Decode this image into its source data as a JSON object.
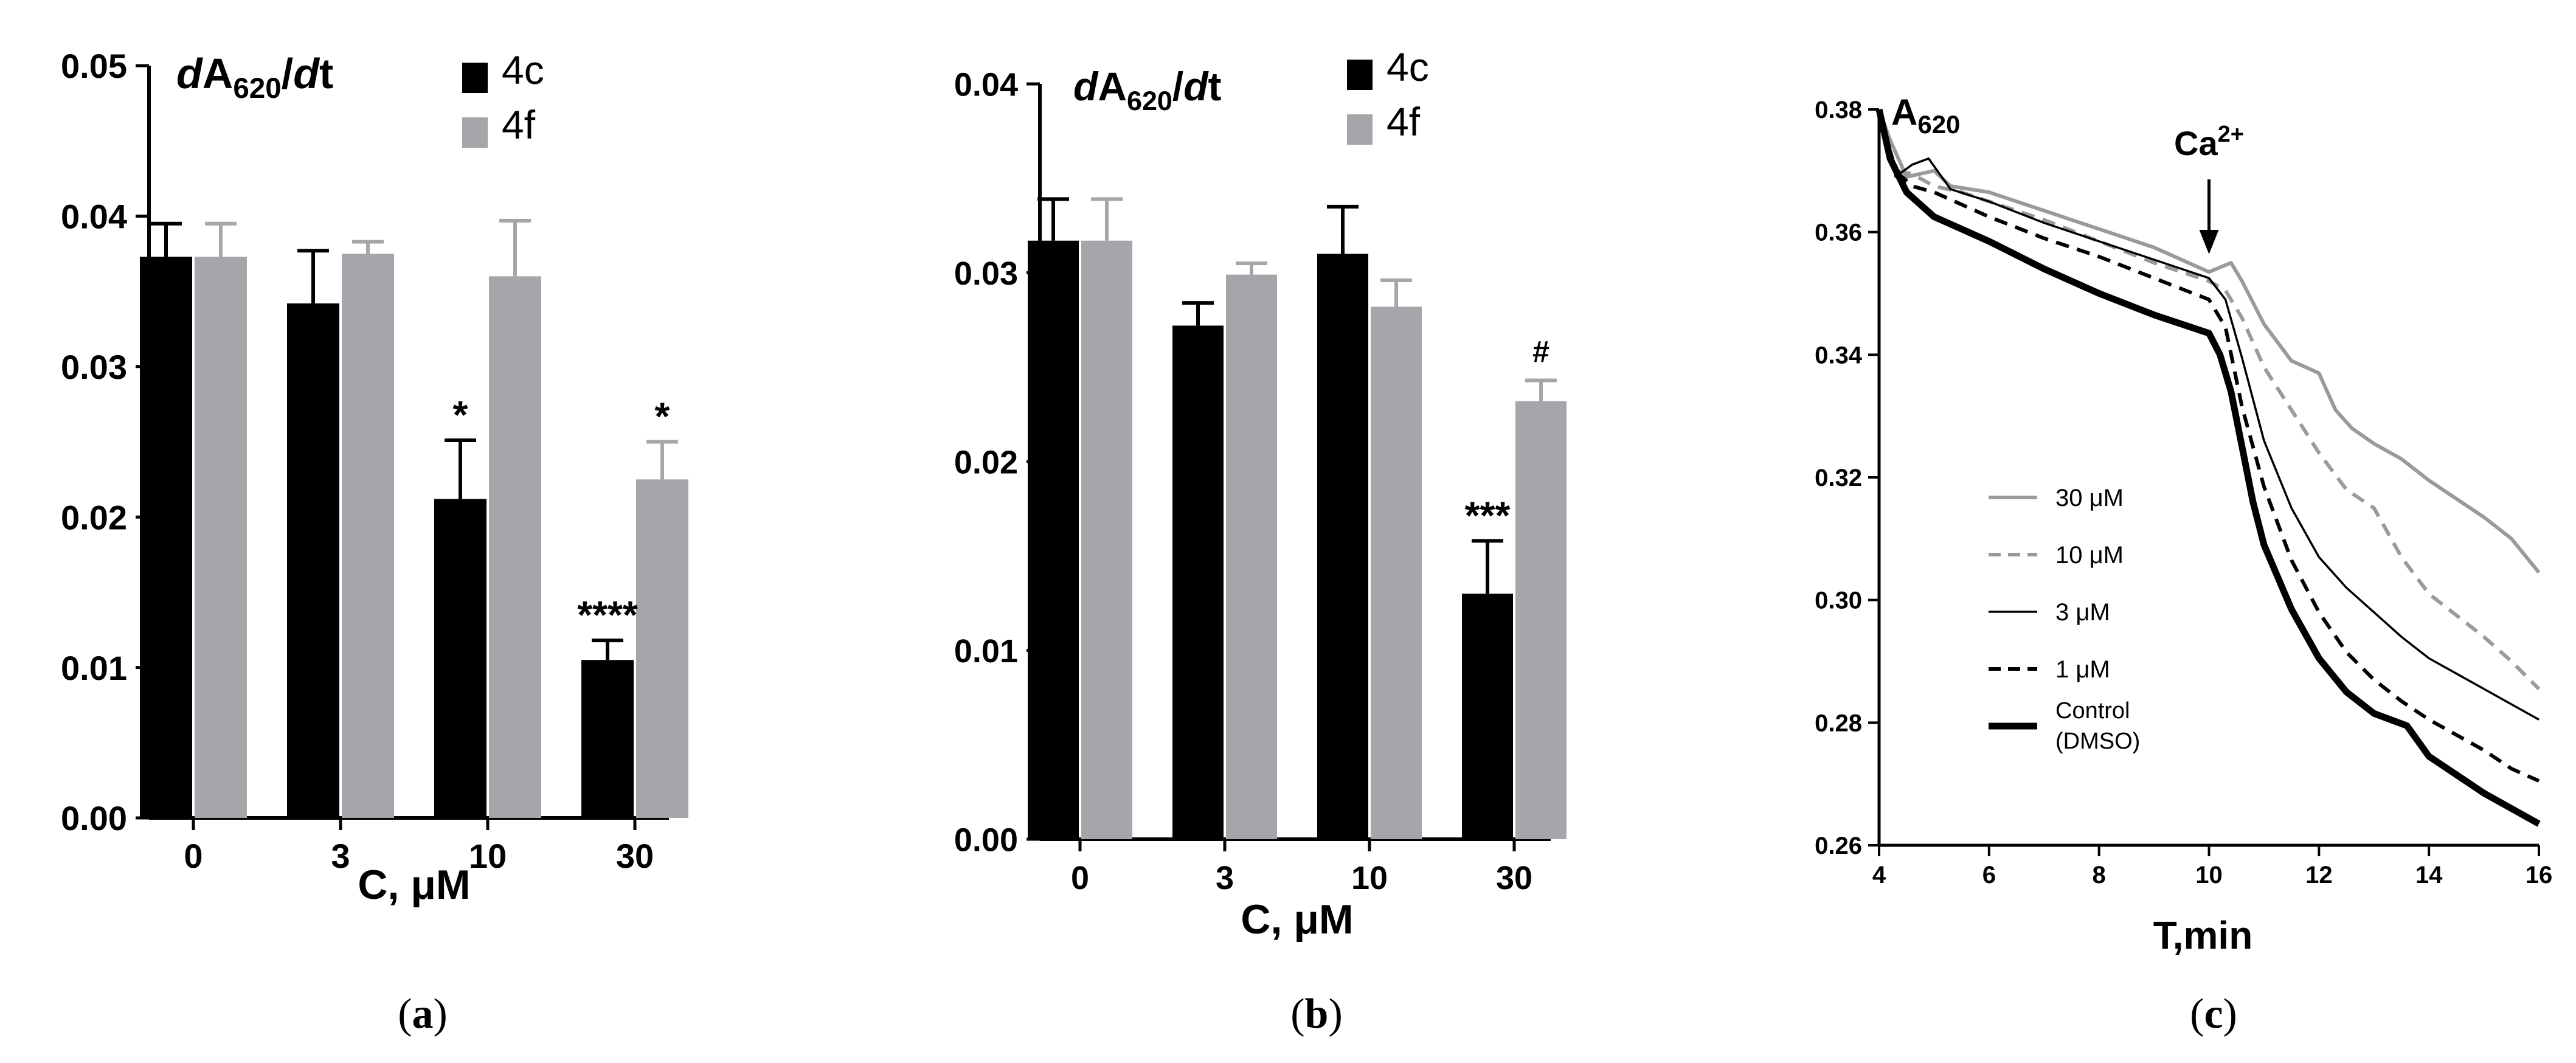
{
  "chart_data": [
    {
      "type": "bar",
      "panel_label": "a",
      "title_italic_prefix": "d",
      "title_main": "A",
      "title_sub": "620",
      "title_slash": "/",
      "title_italic_suffix": "d",
      "title_end": "t",
      "categories": [
        "0",
        "3",
        "10",
        "30"
      ],
      "xlabel": "C, μM",
      "ylabel": "",
      "ylim": [
        0,
        0.05
      ],
      "yticks": [
        "0.00",
        "0.01",
        "0.02",
        "0.03",
        "0.04",
        "0.05"
      ],
      "series": [
        {
          "name": "4c",
          "color": "#000000",
          "values": [
            0.0373,
            0.0342,
            0.0212,
            0.0105
          ],
          "errors": [
            0.0022,
            0.0035,
            0.0039,
            0.0013
          ]
        },
        {
          "name": "4f",
          "color": "#a6a6aa",
          "values": [
            0.0373,
            0.0375,
            0.036,
            0.0225
          ],
          "errors": [
            0.0022,
            0.0008,
            0.0037,
            0.0025
          ]
        }
      ],
      "annotations": [
        {
          "series": 0,
          "category": 2,
          "text": "*"
        },
        {
          "series": 0,
          "category": 3,
          "text": "****"
        },
        {
          "series": 1,
          "category": 3,
          "text": "*"
        }
      ]
    },
    {
      "type": "bar",
      "panel_label": "b",
      "title_italic_prefix": "d",
      "title_main": "A",
      "title_sub": "620",
      "title_slash": "/",
      "title_italic_suffix": "d",
      "title_end": "t",
      "categories": [
        "0",
        "3",
        "10",
        "30"
      ],
      "xlabel": "C, μM",
      "ylabel": "",
      "ylim": [
        0,
        0.04
      ],
      "yticks": [
        "0.00",
        "0.01",
        "0.02",
        "0.03",
        "0.04"
      ],
      "series": [
        {
          "name": "4c",
          "color": "#000000",
          "values": [
            0.0317,
            0.0272,
            0.031,
            0.013
          ],
          "errors": [
            0.0022,
            0.0012,
            0.0025,
            0.0028
          ]
        },
        {
          "name": "4f",
          "color": "#a6a6aa",
          "values": [
            0.0317,
            0.0299,
            0.0282,
            0.0232
          ],
          "errors": [
            0.0022,
            0.0006,
            0.0014,
            0.0011
          ]
        }
      ],
      "annotations": [
        {
          "series": 0,
          "category": 3,
          "text": "***"
        },
        {
          "series": 1,
          "category": 3,
          "text": "#"
        }
      ]
    },
    {
      "type": "line",
      "panel_label": "c",
      "ylabel_main": "A",
      "ylabel_sub": "620",
      "xlabel": "T,min",
      "xlim": [
        4,
        16
      ],
      "ylim": [
        0.26,
        0.38
      ],
      "xticks": [
        "4",
        "6",
        "8",
        "10",
        "12",
        "14",
        "16"
      ],
      "yticks": [
        "0.26",
        "0.28",
        "0.30",
        "0.32",
        "0.34",
        "0.36",
        "0.38"
      ],
      "annotation": {
        "text": "Ca",
        "sup": "2+",
        "x": 10
      },
      "series": [
        {
          "name": "30 μM",
          "color": "#9a9a9a",
          "dash": "solid",
          "weight": "medium",
          "x": [
            4,
            4.2,
            4.5,
            5,
            5.3,
            6,
            7,
            8,
            9,
            10,
            10.4,
            10.6,
            11,
            11.5,
            12,
            12.3,
            12.6,
            13,
            13.5,
            14,
            14.5,
            15,
            15.5,
            16
          ],
          "y": [
            0.38,
            0.375,
            0.369,
            0.37,
            0.3675,
            0.3665,
            0.3635,
            0.3605,
            0.3575,
            0.3535,
            0.355,
            0.352,
            0.345,
            0.339,
            0.337,
            0.331,
            0.328,
            0.3255,
            0.323,
            0.3195,
            0.3165,
            0.3135,
            0.31,
            0.3045
          ]
        },
        {
          "name": "10 μM",
          "color": "#9a9a9a",
          "dash": "dashed",
          "weight": "medium",
          "x": [
            4,
            4.3,
            4.6,
            5,
            5.5,
            6,
            7,
            8,
            9,
            10,
            10.3,
            10.6,
            11,
            11.5,
            12,
            12.5,
            13,
            13.5,
            14,
            14.5,
            15,
            15.5,
            16
          ],
          "y": [
            0.38,
            0.37,
            0.3695,
            0.3675,
            0.3665,
            0.365,
            0.362,
            0.3585,
            0.355,
            0.352,
            0.3505,
            0.346,
            0.338,
            0.331,
            0.324,
            0.318,
            0.315,
            0.307,
            0.301,
            0.2975,
            0.294,
            0.29,
            0.2855
          ]
        },
        {
          "name": "3 μM",
          "color": "#000000",
          "dash": "solid",
          "weight": "thin",
          "x": [
            4,
            4.3,
            4.6,
            4.9,
            5.3,
            6,
            7,
            8,
            9,
            10,
            10.3,
            10.6,
            11,
            11.5,
            12,
            12.5,
            13,
            13.5,
            14,
            14.5,
            15,
            15.5,
            16
          ],
          "y": [
            0.38,
            0.369,
            0.371,
            0.372,
            0.367,
            0.365,
            0.3615,
            0.3585,
            0.3555,
            0.3525,
            0.349,
            0.3395,
            0.326,
            0.315,
            0.307,
            0.302,
            0.298,
            0.294,
            0.2905,
            0.288,
            0.2855,
            0.283,
            0.2805
          ]
        },
        {
          "name": "1 μM",
          "color": "#000000",
          "dash": "dashed",
          "weight": "medium",
          "x": [
            4,
            4.3,
            4.6,
            5,
            5.5,
            6,
            7,
            8,
            9,
            10,
            10.3,
            10.6,
            11,
            11.5,
            12,
            12.5,
            13,
            13.5,
            14,
            14.5,
            15,
            15.5,
            16
          ],
          "y": [
            0.38,
            0.37,
            0.3675,
            0.3665,
            0.3645,
            0.3625,
            0.359,
            0.356,
            0.3525,
            0.349,
            0.3445,
            0.3315,
            0.3185,
            0.3065,
            0.298,
            0.2915,
            0.287,
            0.2835,
            0.2805,
            0.278,
            0.2755,
            0.2725,
            0.2705
          ]
        },
        {
          "name": "Control (DMSO)",
          "label_lines": [
            "Control",
            "(DMSO)"
          ],
          "color": "#000000",
          "dash": "solid",
          "weight": "thick",
          "x": [
            4,
            4.2,
            4.5,
            5,
            5.5,
            6,
            7,
            8,
            9,
            10,
            10.2,
            10.4,
            10.6,
            10.8,
            11,
            11.5,
            12,
            12.5,
            13,
            13.3,
            13.6,
            14,
            14.5,
            15,
            15.5,
            16
          ],
          "y": [
            0.38,
            0.372,
            0.3665,
            0.3625,
            0.3605,
            0.3585,
            0.354,
            0.35,
            0.3465,
            0.3435,
            0.34,
            0.334,
            0.325,
            0.316,
            0.309,
            0.2985,
            0.2905,
            0.285,
            0.2815,
            0.2805,
            0.2795,
            0.2745,
            0.2715,
            0.2685,
            0.266,
            0.2635
          ]
        }
      ]
    }
  ]
}
